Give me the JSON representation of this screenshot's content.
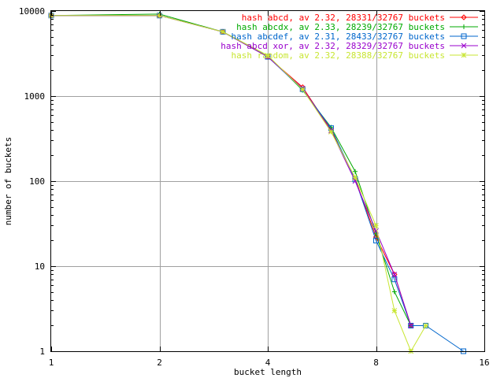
{
  "chart_data": {
    "type": "line",
    "xlabel": "bucket length",
    "ylabel": "number of buckets",
    "x_scale": "log2",
    "y_scale": "log10",
    "xlim": [
      1,
      16
    ],
    "ylim": [
      1,
      10000
    ],
    "x_ticks": [
      "1",
      "2",
      "4",
      "8",
      "16"
    ],
    "y_ticks": [
      "1",
      "10",
      "100",
      "1000",
      "10000"
    ],
    "x_tick_values": [
      1,
      2,
      4,
      8,
      16
    ],
    "y_tick_values": [
      1,
      10,
      100,
      1000,
      10000
    ],
    "grid": true,
    "legend_position": "top-right",
    "series": [
      {
        "name": "hash abcd, av 2.32, 28331/32767 buckets",
        "color": "#ff0000",
        "marker": "diamond",
        "points": [
          [
            1,
            8850
          ],
          [
            2,
            8850
          ],
          [
            3,
            5700
          ],
          [
            4,
            2900
          ],
          [
            5,
            1270
          ],
          [
            6,
            400
          ],
          [
            7,
            107
          ],
          [
            8,
            22
          ],
          [
            9,
            8
          ],
          [
            10,
            2
          ]
        ]
      },
      {
        "name": "hash abcdx, av 2.33, 28239/32767 buckets",
        "color": "#00aa00",
        "marker": "plus",
        "points": [
          [
            1,
            8850
          ],
          [
            2,
            9200
          ],
          [
            3,
            5700
          ],
          [
            4,
            3000
          ],
          [
            5,
            1170
          ],
          [
            6,
            430
          ],
          [
            7,
            130
          ],
          [
            8,
            24
          ],
          [
            9,
            5
          ],
          [
            10,
            2
          ]
        ]
      },
      {
        "name": "hash abcdef, av 2.31, 28433/32767 buckets",
        "color": "#0066cc",
        "marker": "square",
        "points": [
          [
            1,
            8850
          ],
          [
            2,
            8850
          ],
          [
            3,
            5700
          ],
          [
            4,
            2900
          ],
          [
            5,
            1200
          ],
          [
            6,
            420
          ],
          [
            7,
            105
          ],
          [
            8,
            20
          ],
          [
            9,
            7
          ],
          [
            10,
            2
          ],
          [
            11,
            2
          ],
          [
            14,
            1
          ]
        ]
      },
      {
        "name": "hash abcd xor, av 2.32, 28329/32767 buckets",
        "color": "#9900cc",
        "marker": "cross",
        "points": [
          [
            1,
            8850
          ],
          [
            2,
            8850
          ],
          [
            3,
            5700
          ],
          [
            4,
            2900
          ],
          [
            5,
            1230
          ],
          [
            6,
            390
          ],
          [
            7,
            100
          ],
          [
            8,
            26
          ],
          [
            9,
            8
          ],
          [
            10,
            2
          ]
        ]
      },
      {
        "name": "hash random, av 2.32, 28388/32767 buckets",
        "color": "#c8e632",
        "marker": "star",
        "points": [
          [
            1,
            8850
          ],
          [
            2,
            8850
          ],
          [
            3,
            5700
          ],
          [
            4,
            3000
          ],
          [
            5,
            1200
          ],
          [
            6,
            380
          ],
          [
            7,
            110
          ],
          [
            8,
            30
          ],
          [
            9,
            3
          ],
          [
            10,
            1
          ],
          [
            11,
            2
          ]
        ]
      }
    ]
  }
}
